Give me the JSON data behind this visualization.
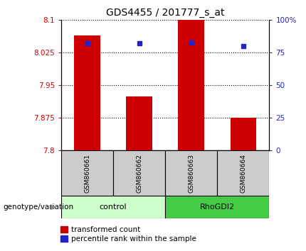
{
  "title": "GDS4455 / 201777_s_at",
  "samples": [
    "GSM860661",
    "GSM860662",
    "GSM860663",
    "GSM860664"
  ],
  "bar_values": [
    8.065,
    7.925,
    8.1,
    7.876
  ],
  "percentile_values": [
    82,
    82,
    83,
    80
  ],
  "ymin": 7.8,
  "ymax": 8.1,
  "yticks": [
    7.8,
    7.875,
    7.95,
    8.025,
    8.1
  ],
  "ytick_labels": [
    "7.8",
    "7.875",
    "7.95",
    "8.025",
    "8.1"
  ],
  "y2min": 0,
  "y2max": 100,
  "y2ticks": [
    0,
    25,
    50,
    75,
    100
  ],
  "y2tick_labels": [
    "0",
    "25",
    "50",
    "75",
    "100%"
  ],
  "bar_color": "#cc0000",
  "dot_color": "#2222cc",
  "group_colors_light": "#ccffcc",
  "group_colors_dark": "#44cc44",
  "group_label": "genotype/variation",
  "legend_items": [
    "transformed count",
    "percentile rank within the sample"
  ],
  "bar_width": 0.5,
  "label_color_left": "#cc0000",
  "label_color_right": "#2222cc",
  "sample_box_color": "#cccccc",
  "fig_bg": "#ffffff"
}
